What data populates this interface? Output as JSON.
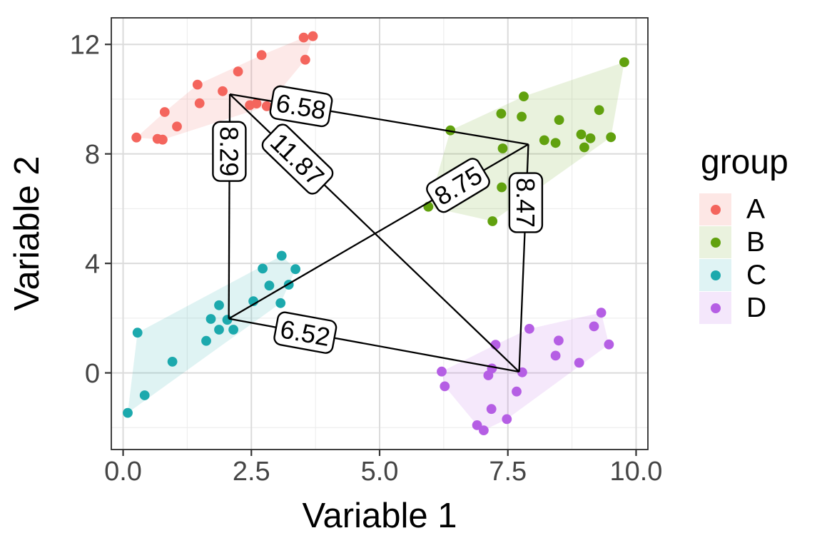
{
  "chart_data": {
    "type": "scatter",
    "title": "",
    "xlabel": "Variable 1",
    "ylabel": "Variable 2",
    "xlim": [
      -0.23,
      10.23
    ],
    "ylim": [
      -2.8,
      12.97
    ],
    "grid": "on",
    "x_ticks": {
      "values": [
        0,
        2.5,
        5,
        7.5,
        10
      ],
      "labels": [
        "0.0",
        "2.5",
        "5.0",
        "7.5",
        "10.0"
      ]
    },
    "y_ticks": {
      "values": [
        0,
        4,
        8,
        12
      ],
      "labels": [
        "0",
        "4",
        "8",
        "12"
      ]
    },
    "x_minor": [
      1.25,
      3.75,
      6.25,
      8.75
    ],
    "y_minor": [
      -2,
      2,
      6,
      10
    ],
    "legend": {
      "title": "group",
      "position": "right"
    },
    "style_colors": {
      "major_grid": "#DBDBDB",
      "minor_grid": "#EDEDED",
      "panel_border": "#2B2B2B",
      "tick_label": "#454545",
      "edge_line": "#000000",
      "label_box_fill": "#FFFFFF",
      "label_box_border": "#000000"
    },
    "groups": [
      {
        "name": "A",
        "color": "#F4655D",
        "fill": "#FDE7E5",
        "centroid": [
          2.08,
          10.18
        ],
        "points": [
          [
            0.26,
            8.6
          ],
          [
            0.67,
            8.55
          ],
          [
            0.77,
            8.52
          ],
          [
            0.81,
            9.53
          ],
          [
            1.05,
            9.0
          ],
          [
            1.45,
            10.53
          ],
          [
            1.49,
            9.85
          ],
          [
            1.94,
            10.29
          ],
          [
            2.24,
            11.01
          ],
          [
            2.47,
            9.78
          ],
          [
            2.6,
            9.84
          ],
          [
            2.8,
            9.74
          ],
          [
            2.7,
            11.61
          ],
          [
            3.52,
            12.25
          ],
          [
            3.7,
            12.3
          ],
          [
            3.55,
            11.44
          ]
        ]
      },
      {
        "name": "B",
        "color": "#61A10E",
        "fill": "#EAF2DE",
        "centroid": [
          7.9,
          8.35
        ],
        "points": [
          [
            5.95,
            6.07
          ],
          [
            6.38,
            8.86
          ],
          [
            7.2,
            5.54
          ],
          [
            7.37,
            9.47
          ],
          [
            7.38,
            6.78
          ],
          [
            7.4,
            8.2
          ],
          [
            7.77,
            9.36
          ],
          [
            7.81,
            10.1
          ],
          [
            8.21,
            8.5
          ],
          [
            8.43,
            8.4
          ],
          [
            8.5,
            9.24
          ],
          [
            8.93,
            8.71
          ],
          [
            8.99,
            8.24
          ],
          [
            9.11,
            8.57
          ],
          [
            9.28,
            9.6
          ],
          [
            9.51,
            8.61
          ],
          [
            9.77,
            11.35
          ]
        ]
      },
      {
        "name": "C",
        "color": "#1CA9AD",
        "fill": "#DFF3F4",
        "centroid": [
          2.06,
          1.98
        ],
        "points": [
          [
            0.09,
            -1.46
          ],
          [
            0.28,
            1.47
          ],
          [
            0.42,
            -0.82
          ],
          [
            0.96,
            0.41
          ],
          [
            1.62,
            1.17
          ],
          [
            1.71,
            1.97
          ],
          [
            1.87,
            2.47
          ],
          [
            1.87,
            1.58
          ],
          [
            2.03,
            1.94
          ],
          [
            2.15,
            1.58
          ],
          [
            2.54,
            2.62
          ],
          [
            2.72,
            3.81
          ],
          [
            2.85,
            3.19
          ],
          [
            3.07,
            2.55
          ],
          [
            3.09,
            4.28
          ],
          [
            3.23,
            3.22
          ],
          [
            3.36,
            3.79
          ]
        ]
      },
      {
        "name": "D",
        "color": "#B55EE4",
        "fill": "#F4E7FB",
        "centroid": [
          7.72,
          0.04
        ],
        "points": [
          [
            6.21,
            0.05
          ],
          [
            6.27,
            -0.49
          ],
          [
            6.9,
            -1.91
          ],
          [
            7.03,
            -2.1
          ],
          [
            7.12,
            -0.09
          ],
          [
            7.18,
            -1.32
          ],
          [
            7.19,
            0.16
          ],
          [
            7.26,
            1.03
          ],
          [
            7.48,
            -1.69
          ],
          [
            7.67,
            -0.68
          ],
          [
            7.78,
            0.02
          ],
          [
            7.92,
            1.61
          ],
          [
            8.43,
            0.63
          ],
          [
            8.49,
            1.18
          ],
          [
            8.89,
            0.37
          ],
          [
            9.18,
            1.7
          ],
          [
            9.32,
            2.2
          ],
          [
            9.47,
            1.04
          ]
        ]
      }
    ],
    "edges": [
      {
        "from": "A",
        "to": "B",
        "label": "6.58",
        "label_at": [
          3.47,
          9.74
        ],
        "angle": 9.5
      },
      {
        "from": "A",
        "to": "C",
        "label": "8.29",
        "label_at": [
          2.07,
          8.09
        ],
        "angle": 90
      },
      {
        "from": "A",
        "to": "D",
        "label": "11.87",
        "label_at": [
          3.4,
          7.81
        ],
        "angle": 44
      },
      {
        "from": "B",
        "to": "C",
        "label": "8.75",
        "label_at": [
          6.53,
          6.85
        ],
        "angle": -31
      },
      {
        "from": "B",
        "to": "D",
        "label": "8.47",
        "label_at": [
          7.85,
          6.22
        ],
        "angle": 90
      },
      {
        "from": "C",
        "to": "D",
        "label": "6.52",
        "label_at": [
          3.55,
          1.47
        ],
        "angle": 10.4
      }
    ]
  }
}
